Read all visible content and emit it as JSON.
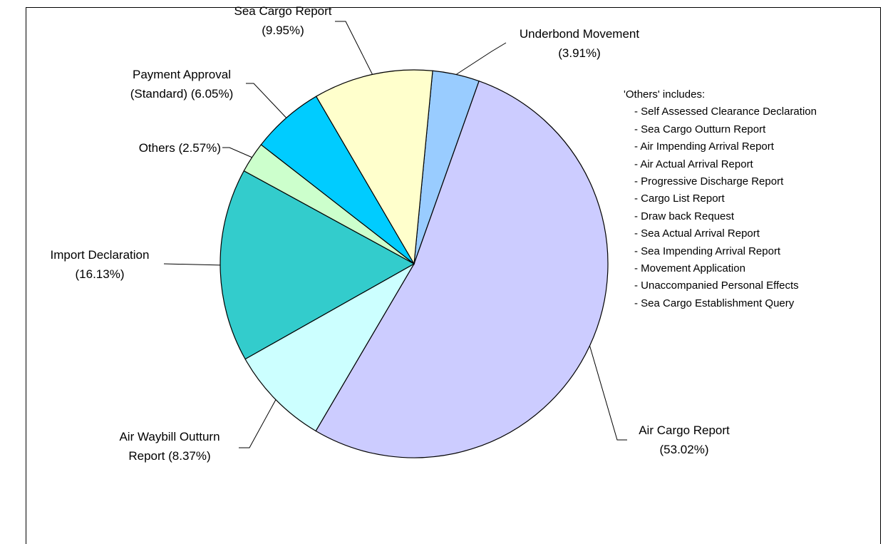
{
  "chart_data": {
    "type": "pie",
    "categories": [
      "Underbond Movement",
      "Air Cargo Report",
      "Air Waybill Outturn Report",
      "Import Declaration",
      "Others",
      "Payment Approval (Standard)",
      "Sea Cargo Report"
    ],
    "values": [
      3.91,
      53.02,
      8.37,
      16.13,
      2.57,
      6.05,
      9.95
    ],
    "value_labels": [
      "(3.91%)",
      "(53.02%)",
      "(8.37%)",
      "(16.13%)",
      "(2.57%)",
      "(6.05%)",
      "(9.95%)"
    ],
    "colors": [
      "#99ccff",
      "#ccccff",
      "#ccffff",
      "#33cccc",
      "#ccffcc",
      "#00ccff",
      "#ffffcc"
    ],
    "others_note": {
      "title": "'Others' includes:",
      "items": [
        "- Self Assessed Clearance Declaration",
        "- Sea Cargo Outturn Report",
        "- Air Impending Arrival Report",
        "- Air Actual Arrival Report",
        "- Progressive Discharge Report",
        "- Cargo List Report",
        "- Draw back Request",
        "- Sea Actual Arrival Report",
        "- Sea Impending Arrival Report",
        "- Movement Application",
        "- Unaccompanied Personal Effects",
        "- Sea Cargo Establishment Query"
      ]
    }
  }
}
